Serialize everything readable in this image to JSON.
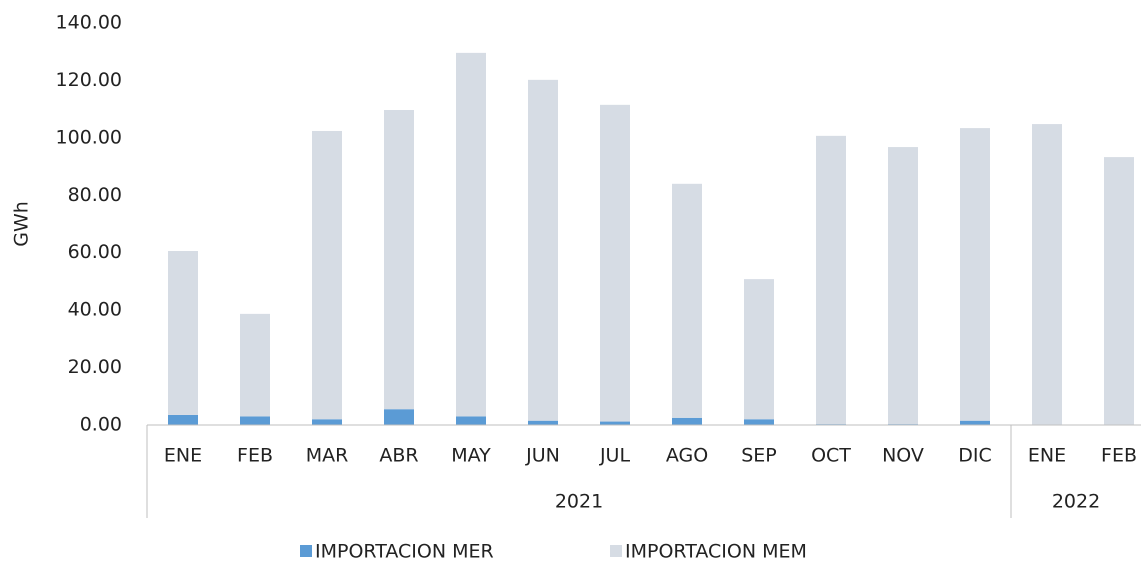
{
  "chart_data": {
    "type": "stacked_bar",
    "y_label": "GWh",
    "categories": [
      "ENE",
      "FEB",
      "MAR",
      "ABR",
      "MAY",
      "JUN",
      "JUL",
      "AGO",
      "SEP",
      "OCT",
      "NOV",
      "DIC",
      "ENE",
      "FEB"
    ],
    "groups": [
      {
        "label": "2021",
        "count": 12
      },
      {
        "label": "2022",
        "count": 2
      }
    ],
    "series": [
      {
        "name": "IMPORTACION MER",
        "color": "#5b9bd5",
        "values": [
          3.5,
          3,
          2,
          5.5,
          3,
          1.5,
          1.2,
          2.5,
          2,
          0.3,
          0.3,
          1.5,
          0.2,
          0.2
        ]
      },
      {
        "name": "IMPORTACION MEM",
        "color": "#d6dce4",
        "values": [
          57.1,
          35.7,
          100.4,
          104.2,
          126.6,
          118.7,
          110.3,
          81.5,
          48.8,
          100.4,
          96.5,
          101.9,
          104.6,
          93.1
        ]
      }
    ],
    "ylim": [
      0,
      140
    ],
    "yticks": [
      {
        "value": 0,
        "label": "0.00"
      },
      {
        "value": 20,
        "label": "20.00"
      },
      {
        "value": 40,
        "label": "40.00"
      },
      {
        "value": 60,
        "label": "60.00"
      },
      {
        "value": 80,
        "label": "80.00"
      },
      {
        "value": 100,
        "label": "100.00"
      },
      {
        "value": 120,
        "label": "120.00"
      },
      {
        "value": 140,
        "label": "140.00"
      }
    ],
    "grid": false,
    "legend": "bottom"
  }
}
